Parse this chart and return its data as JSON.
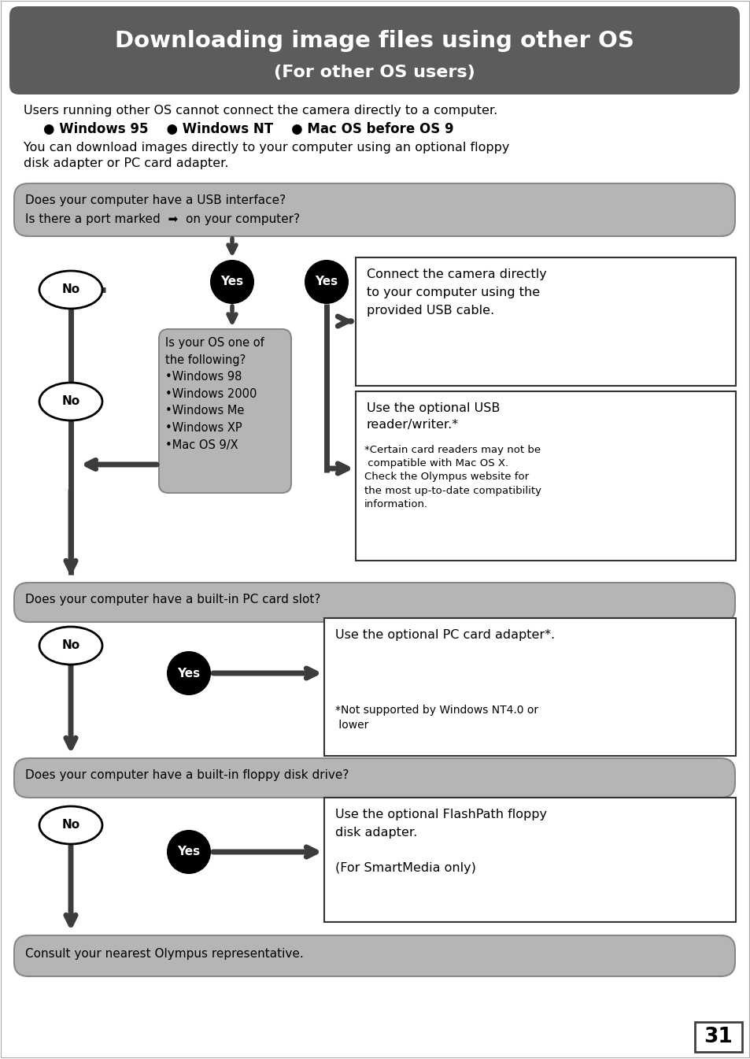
{
  "title_line1": "Downloading image files using other OS",
  "title_line2": "(For other OS users)",
  "title_bg": "#5c5c5c",
  "title_text_color": "#ffffff",
  "body_bg": "#ffffff",
  "gray_box_bg": "#b5b5b5",
  "os_box_bg": "#b5b5b5",
  "page_number": "31",
  "intro1": "Users running other OS cannot connect the camera directly to a computer.",
  "intro2": "● Windows 95    ● Windows NT    ● Mac OS before OS 9",
  "intro3a": "You can download images directly to your computer using an optional floppy",
  "intro3b": "disk adapter or PC card adapter.",
  "q1a": "Does your computer have a USB interface?",
  "q1b": "Is there a port marked  ➡  on your computer?",
  "q2": "Does your computer have a built-in PC card slot?",
  "q3": "Does your computer have a built-in floppy disk drive?",
  "q_bottom": "Consult your nearest Olympus representative.",
  "os_text": "Is your OS one of\nthe following?\n•Windows 98\n•Windows 2000\n•Windows Me\n•Windows XP\n•Mac OS 9/X",
  "r1": "Connect the camera directly\nto your computer using the\nprovided USB cable.",
  "r2a": "Use the optional USB\nreader/writer.*",
  "r2b": "*Certain card readers may not be\n compatible with Mac OS X.\nCheck the Olympus website for\nthe most up-to-date compatibility\ninformation.",
  "r3a": "Use the optional PC card adapter*.",
  "r3b": "*Not supported by Windows NT4.0 or\n lower",
  "r4": "Use the optional FlashPath floppy\ndisk adapter.\n\n(For SmartMedia only)"
}
